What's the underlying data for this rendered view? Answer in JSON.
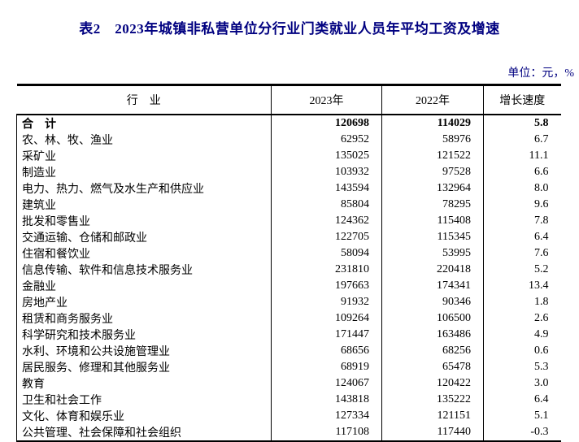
{
  "page": {
    "title": "表2　2023年城镇非私营单位分行业门类就业人员年平均工资及增速",
    "unit_note": "单位：元，%"
  },
  "colors": {
    "title": "#000080",
    "unit_note": "#000080",
    "text": "#000000",
    "border": "#000000"
  },
  "table": {
    "headers": {
      "industry": "行　业",
      "y2023": "2023年",
      "y2022": "2022年",
      "growth": "增长速度"
    },
    "total": {
      "industry": "合　计",
      "y2023": "120698",
      "y2022": "114029",
      "growth": "5.8"
    },
    "rows": [
      {
        "industry": "农、林、牧、渔业",
        "y2023": "62952",
        "y2022": "58976",
        "growth": "6.7"
      },
      {
        "industry": "采矿业",
        "y2023": "135025",
        "y2022": "121522",
        "growth": "11.1"
      },
      {
        "industry": "制造业",
        "y2023": "103932",
        "y2022": "97528",
        "growth": "6.6"
      },
      {
        "industry": "电力、热力、燃气及水生产和供应业",
        "y2023": "143594",
        "y2022": "132964",
        "growth": "8.0"
      },
      {
        "industry": "建筑业",
        "y2023": "85804",
        "y2022": "78295",
        "growth": "9.6"
      },
      {
        "industry": "批发和零售业",
        "y2023": "124362",
        "y2022": "115408",
        "growth": "7.8"
      },
      {
        "industry": "交通运输、仓储和邮政业",
        "y2023": "122705",
        "y2022": "115345",
        "growth": "6.4"
      },
      {
        "industry": "住宿和餐饮业",
        "y2023": "58094",
        "y2022": "53995",
        "growth": "7.6"
      },
      {
        "industry": "信息传输、软件和信息技术服务业",
        "y2023": "231810",
        "y2022": "220418",
        "growth": "5.2"
      },
      {
        "industry": "金融业",
        "y2023": "197663",
        "y2022": "174341",
        "growth": "13.4"
      },
      {
        "industry": "房地产业",
        "y2023": "91932",
        "y2022": "90346",
        "growth": "1.8"
      },
      {
        "industry": "租赁和商务服务业",
        "y2023": "109264",
        "y2022": "106500",
        "growth": "2.6"
      },
      {
        "industry": "科学研究和技术服务业",
        "y2023": "171447",
        "y2022": "163486",
        "growth": "4.9"
      },
      {
        "industry": "水利、环境和公共设施管理业",
        "y2023": "68656",
        "y2022": "68256",
        "growth": "0.6"
      },
      {
        "industry": "居民服务、修理和其他服务业",
        "y2023": "68919",
        "y2022": "65478",
        "growth": "5.3"
      },
      {
        "industry": "教育",
        "y2023": "124067",
        "y2022": "120422",
        "growth": "3.0"
      },
      {
        "industry": "卫生和社会工作",
        "y2023": "143818",
        "y2022": "135222",
        "growth": "6.4"
      },
      {
        "industry": "文化、体育和娱乐业",
        "y2023": "127334",
        "y2022": "121151",
        "growth": "5.1"
      },
      {
        "industry": "公共管理、社会保障和社会组织",
        "y2023": "117108",
        "y2022": "117440",
        "growth": "-0.3"
      }
    ]
  }
}
